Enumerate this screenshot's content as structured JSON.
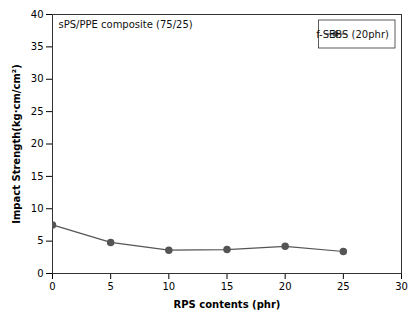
{
  "chart_data": {
    "type": "line",
    "xlabel": "RPS contents (phr)",
    "ylabel": "Impact Strength(kg·cm/cm²)",
    "annotation": "sPS/PPE composite (75/25)",
    "x": [
      0,
      5,
      10,
      15,
      20,
      25
    ],
    "series": [
      {
        "name": "f-SEBS (20phr)",
        "color": "#555555",
        "marker": "circle",
        "values": [
          7.5,
          4.8,
          3.6,
          3.7,
          4.2,
          3.4
        ]
      }
    ],
    "xlim": [
      0,
      30
    ],
    "ylim": [
      0,
      40
    ],
    "xticks": [
      0,
      5,
      10,
      15,
      20,
      25,
      30
    ],
    "yticks": [
      0,
      5,
      10,
      15,
      20,
      25,
      30,
      35,
      40
    ],
    "grid": false,
    "legend": "upper right"
  }
}
